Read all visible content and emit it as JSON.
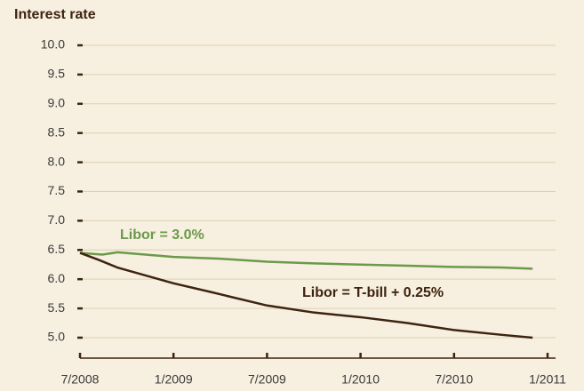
{
  "chart_data": {
    "type": "line",
    "title": "Interest rate",
    "xlim": [
      2008.5,
      2011.0
    ],
    "xticks": [
      {
        "value": 2008.5,
        "label": "7/2008"
      },
      {
        "value": 2009.0,
        "label": "1/2009"
      },
      {
        "value": 2009.5,
        "label": "7/2009"
      },
      {
        "value": 2010.0,
        "label": "1/2010"
      },
      {
        "value": 2010.5,
        "label": "7/2010"
      },
      {
        "value": 2011.0,
        "label": "1/2011"
      }
    ],
    "ylim": [
      4.65,
      10.0
    ],
    "yticks": [
      {
        "value": 5,
        "label": "5.0"
      },
      5.5,
      {
        "value": 6,
        "label": "6.0"
      },
      6.5,
      {
        "value": 7,
        "label": "7.0"
      },
      7.5,
      {
        "value": 8,
        "label": "8.0"
      },
      8.5,
      {
        "value": 9,
        "label": "9.0"
      },
      9.5,
      {
        "value": 10,
        "label": "10.0"
      }
    ],
    "grid": true,
    "series": [
      {
        "name": "Libor = 3.0%",
        "color": "#6b9a4b",
        "x": [
          2008.5,
          2008.62,
          2008.7,
          2009.0,
          2009.25,
          2009.5,
          2009.75,
          2010.0,
          2010.25,
          2010.5,
          2010.75,
          2010.92
        ],
        "values": [
          6.45,
          6.42,
          6.46,
          6.38,
          6.35,
          6.3,
          6.27,
          6.25,
          6.23,
          6.21,
          6.2,
          6.18
        ]
      },
      {
        "name": "Libor = T-bill + 0.25%",
        "color": "#3d2410",
        "x": [
          2008.5,
          2008.6,
          2008.7,
          2009.0,
          2009.2,
          2009.5,
          2009.75,
          2010.0,
          2010.25,
          2010.5,
          2010.75,
          2010.92
        ],
        "values": [
          6.45,
          6.33,
          6.2,
          5.93,
          5.78,
          5.55,
          5.43,
          5.35,
          5.25,
          5.13,
          5.05,
          5.0
        ]
      }
    ]
  }
}
